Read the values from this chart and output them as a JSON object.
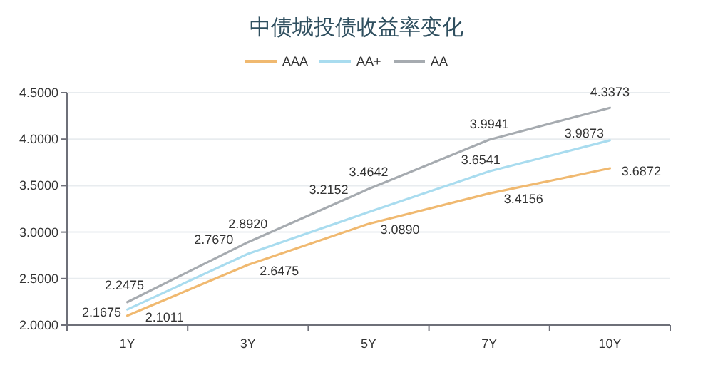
{
  "chart_data": {
    "type": "line",
    "title": "中债城投债收益率变化",
    "categories": [
      "1Y",
      "3Y",
      "5Y",
      "7Y",
      "10Y"
    ],
    "series": [
      {
        "name": "AAA",
        "color": "#f0b970",
        "values": [
          2.1011,
          2.6475,
          3.089,
          3.4156,
          3.6872
        ],
        "value_labels": [
          "2.1011",
          "2.6475",
          "3.0890",
          "3.4156",
          "3.6872"
        ]
      },
      {
        "name": "AA+",
        "color": "#a9dcef",
        "values": [
          2.1675,
          2.767,
          3.2152,
          3.6541,
          3.9873
        ],
        "value_labels": [
          "2.1675",
          "2.7670",
          "3.2152",
          "3.6541",
          "3.9873"
        ]
      },
      {
        "name": "AA",
        "color": "#a6abb0",
        "values": [
          2.2475,
          2.892,
          3.4642,
          3.9941,
          4.3373
        ],
        "value_labels": [
          "2.2475",
          "2.8920",
          "3.4642",
          "3.9941",
          "4.3373"
        ]
      }
    ],
    "ylim": [
      2.0,
      4.5
    ],
    "yticks": [
      {
        "value": 2.0,
        "label": "2.0000"
      },
      {
        "value": 2.5,
        "label": "2.5000"
      },
      {
        "value": 3.0,
        "label": "3.0000"
      },
      {
        "value": 3.5,
        "label": "3.5000"
      },
      {
        "value": 4.0,
        "label": "4.0000"
      },
      {
        "value": 4.5,
        "label": "4.5000"
      }
    ],
    "grid": "y",
    "legend": "top",
    "marker": "none",
    "line_style": "solid"
  }
}
